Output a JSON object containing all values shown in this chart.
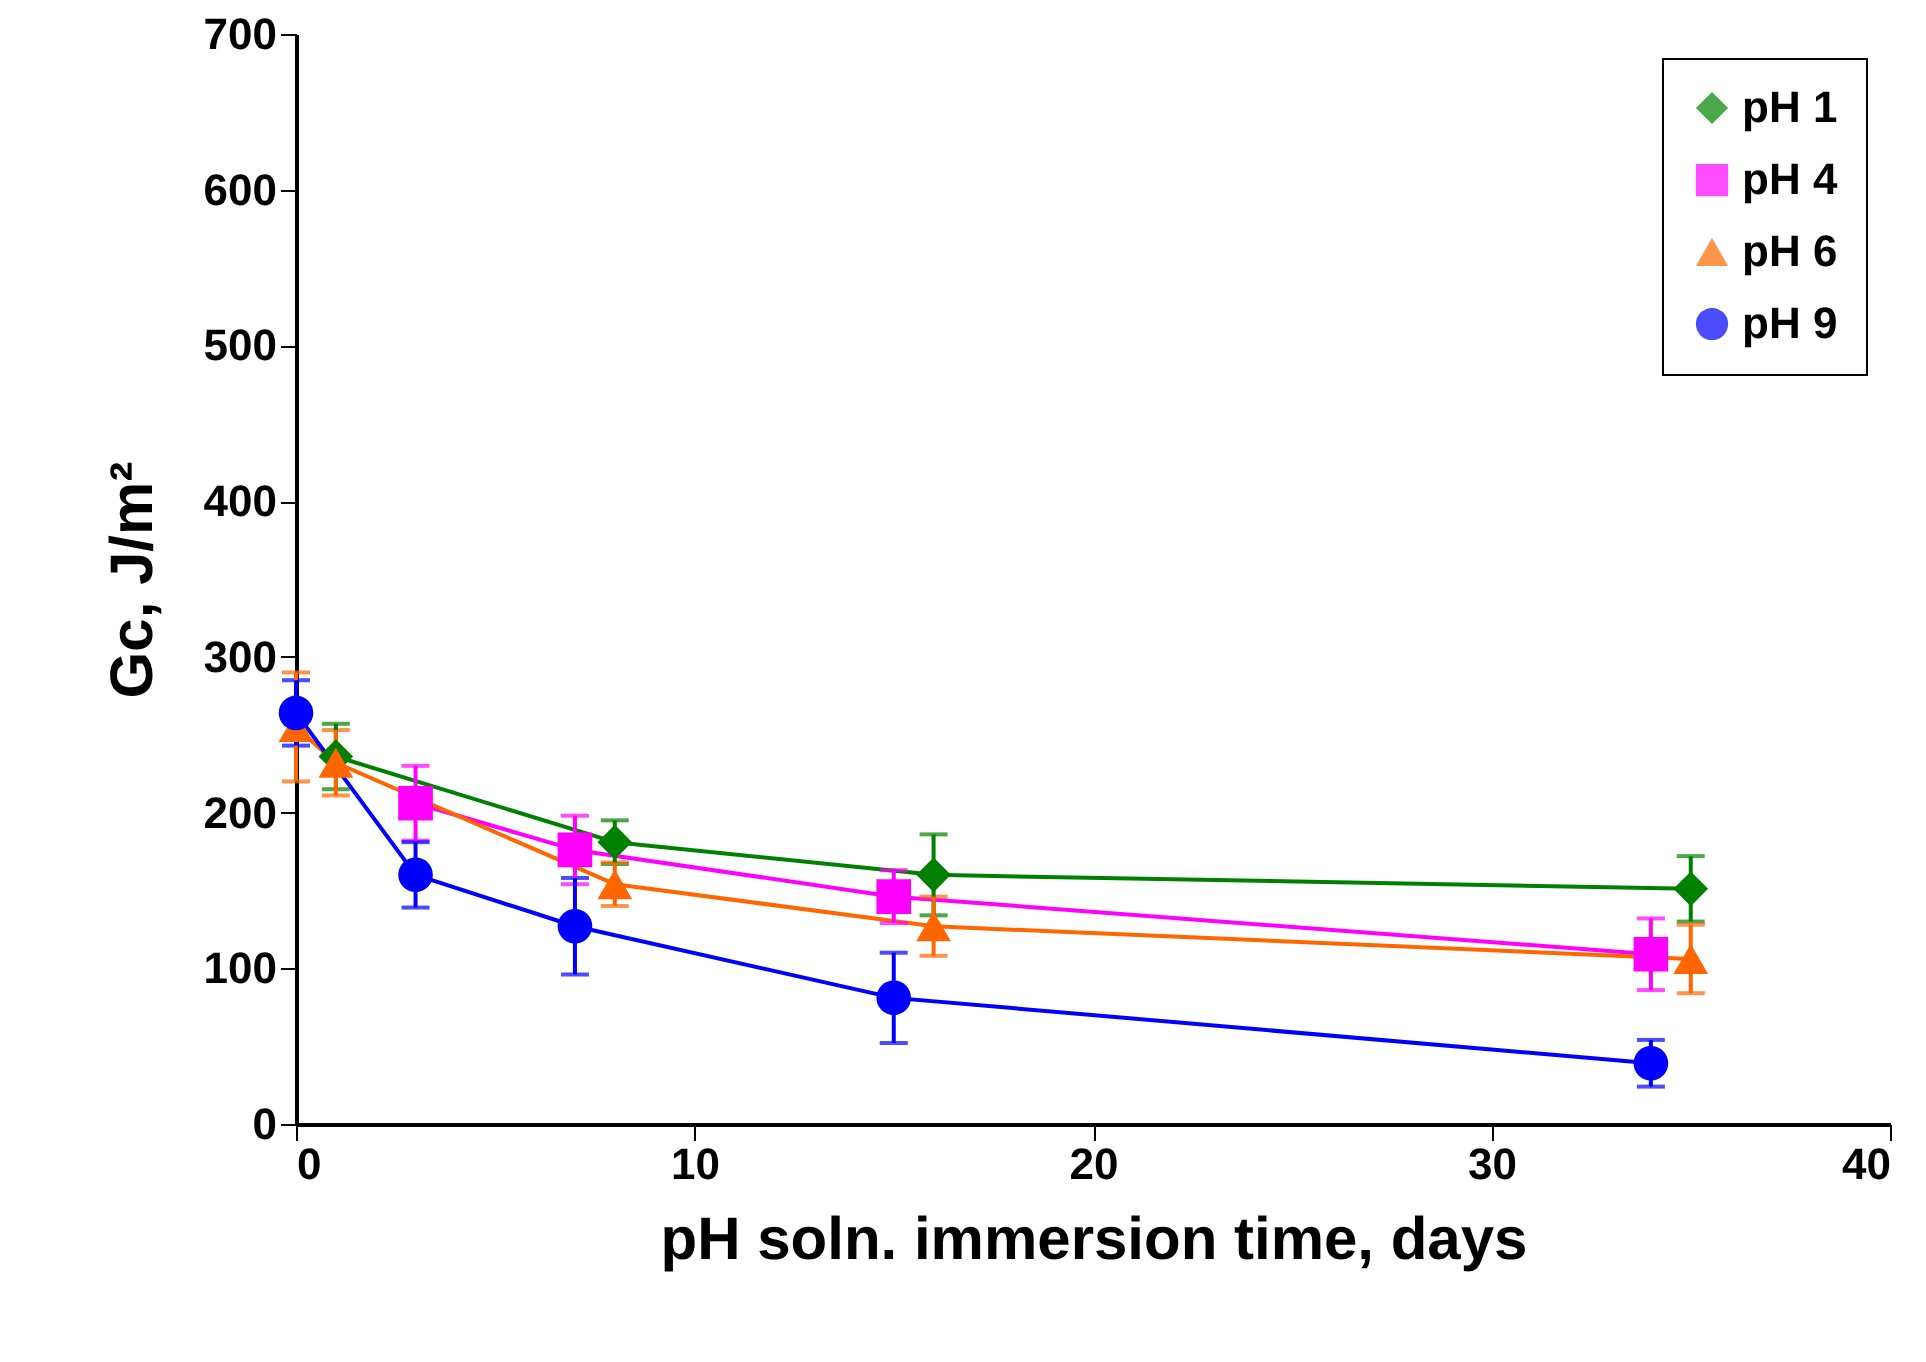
{
  "chart_data": {
    "type": "line",
    "xlabel": "pH soln. immersion time, days",
    "ylabel": "Gc, J/m²",
    "xlim": [
      0,
      40
    ],
    "xticks": [
      0,
      10,
      20,
      30,
      40
    ],
    "ylim": [
      0,
      700
    ],
    "yticks": [
      0,
      100,
      200,
      300,
      400,
      500,
      600,
      700
    ],
    "grid": false,
    "legend": "top right",
    "line_style": "solid",
    "series": [
      {
        "name": "pH 1",
        "color": "#008000",
        "marker": "diamond",
        "x": [
          1,
          8,
          16,
          35
        ],
        "values": [
          236,
          181,
          160,
          151
        ],
        "errors": [
          21,
          14,
          26,
          21
        ]
      },
      {
        "name": "pH 4",
        "color": "#ff00ff",
        "marker": "square",
        "x": [
          3,
          7,
          15,
          34
        ],
        "values": [
          206,
          176,
          146,
          109
        ],
        "errors": [
          24,
          22,
          17,
          23
        ]
      },
      {
        "name": "pH 6",
        "color": "#ff6600",
        "marker": "triangle",
        "x": [
          0,
          1,
          8,
          16,
          35
        ],
        "values": [
          255,
          232,
          154,
          127,
          106
        ],
        "errors": [
          35,
          21,
          14,
          19,
          22
        ]
      },
      {
        "name": "pH 9",
        "color": "#0000ff",
        "marker": "circle",
        "x": [
          0,
          3,
          7,
          15,
          34
        ],
        "values": [
          264,
          160,
          127,
          81,
          39
        ],
        "errors": [
          21,
          21,
          31,
          29,
          15
        ]
      }
    ]
  }
}
